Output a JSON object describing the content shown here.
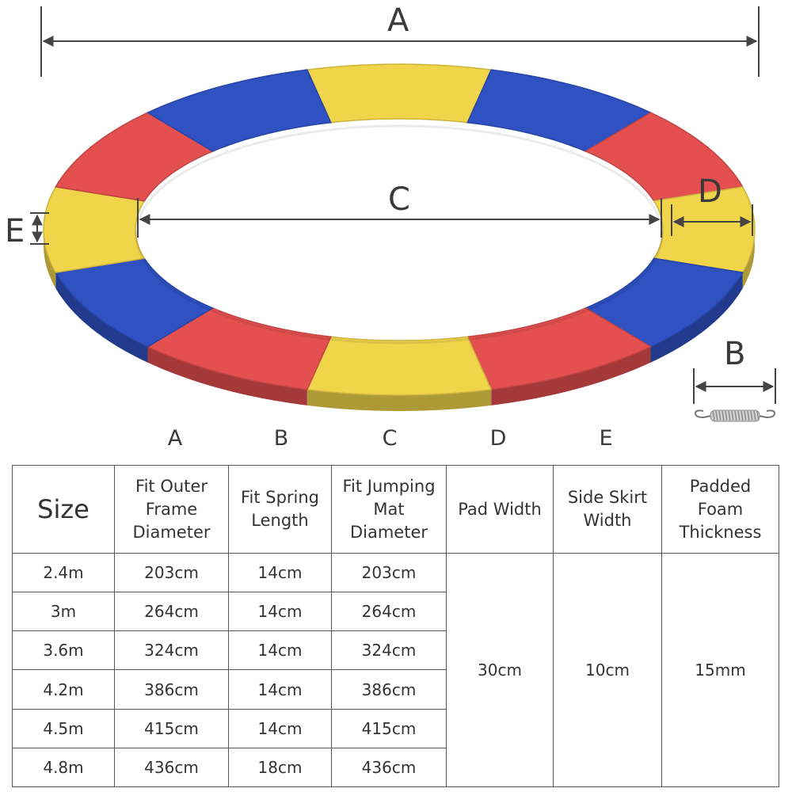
{
  "dimension_labels": {
    "outer_diameter": "A",
    "spring_length": "B",
    "mat_diameter": "C",
    "pad_width": "D",
    "skirt_width": "E"
  },
  "pad_colors": {
    "red": "#e3504f",
    "yellow": "#f0d44a",
    "blue": "#2f51c2"
  },
  "column_letters": [
    "A",
    "B",
    "C",
    "D",
    "E"
  ],
  "table": {
    "headers": {
      "size": "Size",
      "outer_frame": "Fit Outer Frame Diameter",
      "spring_length": "Fit Spring Length",
      "mat_diameter": "Fit Jumping Mat Diameter",
      "pad_width": "Pad Width",
      "skirt_width": "Side Skirt Width",
      "foam_thickness": "Padded Foam Thickness"
    },
    "rows": [
      {
        "size": "2.4m",
        "outer": "203cm",
        "spring": "14cm",
        "mat": "203cm"
      },
      {
        "size": "3m",
        "outer": "264cm",
        "spring": "14cm",
        "mat": "264cm"
      },
      {
        "size": "3.6m",
        "outer": "324cm",
        "spring": "14cm",
        "mat": "324cm"
      },
      {
        "size": "4.2m",
        "outer": "386cm",
        "spring": "14cm",
        "mat": "386cm"
      },
      {
        "size": "4.5m",
        "outer": "415cm",
        "spring": "14cm",
        "mat": "415cm"
      },
      {
        "size": "4.8m",
        "outer": "436cm",
        "spring": "18cm",
        "mat": "436cm"
      }
    ],
    "shared": {
      "pad_width": "30cm",
      "skirt_width": "10cm",
      "foam_thickness": "15mm"
    }
  }
}
